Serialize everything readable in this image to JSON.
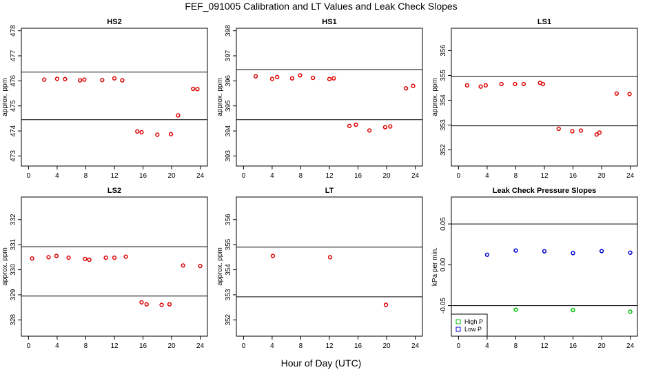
{
  "figure": {
    "title": "FEF_091005  Calibration and LT Values and Leak Check Slopes",
    "xlabel": "Hour of Day (UTC)"
  },
  "chart_data": [
    {
      "id": "hs2",
      "type": "scatter",
      "title": "HS2",
      "xlabel": "",
      "ylabel": "approx. ppm",
      "xlim": [
        -1,
        25
      ],
      "ylim": [
        472.6,
        478.1
      ],
      "xticks": [
        "0",
        "4",
        "8",
        "12",
        "16",
        "20",
        "24"
      ],
      "yticks": [
        "473",
        "474",
        "475",
        "476",
        "477",
        "478"
      ],
      "hlines": [
        476.35,
        474.45
      ],
      "series": [
        {
          "color": "#dd0000",
          "marker": "circle",
          "x": [
            2.2,
            4.0,
            5.1,
            7.2,
            7.8,
            10.3,
            12.0,
            13.1,
            15.2,
            15.8,
            18.0,
            19.9,
            20.9,
            23.0,
            23.6
          ],
          "y": [
            476.05,
            476.08,
            476.07,
            476.02,
            476.05,
            476.03,
            476.1,
            476.02,
            473.98,
            473.95,
            473.85,
            473.87,
            474.62,
            475.68,
            475.67
          ]
        }
      ]
    },
    {
      "id": "hs1",
      "type": "scatter",
      "title": "HS1",
      "xlabel": "",
      "ylabel": "approx. ppm",
      "xlim": [
        -1,
        25
      ],
      "ylim": [
        392.6,
        398.1
      ],
      "xticks": [
        "0",
        "4",
        "8",
        "12",
        "16",
        "20",
        "24"
      ],
      "yticks": [
        "393",
        "394",
        "395",
        "396",
        "397",
        "398"
      ],
      "hlines": [
        396.45,
        394.45
      ],
      "series": [
        {
          "color": "#dd0000",
          "marker": "circle",
          "x": [
            1.7,
            4.0,
            4.7,
            6.8,
            7.9,
            9.7,
            12.0,
            12.6,
            14.8,
            15.7,
            17.6,
            19.8,
            20.5,
            22.7,
            23.7
          ],
          "y": [
            396.18,
            396.08,
            396.15,
            396.1,
            396.22,
            396.12,
            396.07,
            396.1,
            394.2,
            394.25,
            394.02,
            394.15,
            394.18,
            395.7,
            395.8
          ]
        }
      ]
    },
    {
      "id": "ls1",
      "type": "scatter",
      "title": "LS1",
      "xlabel": "",
      "ylabel": "approx. ppm",
      "xlim": [
        -1,
        25
      ],
      "ylim": [
        351.35,
        356.9
      ],
      "xticks": [
        "0",
        "4",
        "8",
        "12",
        "16",
        "20",
        "24"
      ],
      "yticks": [
        "352",
        "353",
        "354",
        "355",
        "356"
      ],
      "hlines": [
        354.95,
        352.97
      ],
      "series": [
        {
          "color": "#dd0000",
          "marker": "circle",
          "x": [
            1.2,
            3.1,
            3.8,
            6.0,
            7.9,
            9.1,
            11.4,
            11.8,
            14.0,
            15.9,
            17.1,
            19.3,
            19.7,
            22.1,
            23.9
          ],
          "y": [
            354.6,
            354.55,
            354.6,
            354.65,
            354.65,
            354.65,
            354.7,
            354.65,
            352.85,
            352.75,
            352.78,
            352.62,
            352.7,
            354.27,
            354.25
          ]
        }
      ]
    },
    {
      "id": "ls2",
      "type": "scatter",
      "title": "LS2",
      "xlabel": "",
      "ylabel": "approx. ppm",
      "xlim": [
        -1,
        25
      ],
      "ylim": [
        327.35,
        332.9
      ],
      "xticks": [
        "0",
        "4",
        "8",
        "12",
        "16",
        "20",
        "24"
      ],
      "yticks": [
        "328",
        "329",
        "330",
        "331",
        "332"
      ],
      "hlines": [
        330.92,
        328.95
      ],
      "series": [
        {
          "color": "#dd0000",
          "marker": "circle",
          "x": [
            0.5,
            2.8,
            3.9,
            5.6,
            7.9,
            8.5,
            10.8,
            12.0,
            13.6,
            15.8,
            16.5,
            18.6,
            19.7,
            21.6,
            24.0
          ],
          "y": [
            330.45,
            330.5,
            330.55,
            330.48,
            330.43,
            330.4,
            330.48,
            330.48,
            330.52,
            328.7,
            328.62,
            328.6,
            328.62,
            330.17,
            330.15
          ]
        }
      ]
    },
    {
      "id": "lt",
      "type": "scatter",
      "title": "LT",
      "xlabel": "",
      "ylabel": "approx. ppm",
      "xlim": [
        -1,
        25
      ],
      "ylim": [
        351.35,
        356.9
      ],
      "xticks": [
        "0",
        "4",
        "8",
        "12",
        "16",
        "20",
        "24"
      ],
      "yticks": [
        "352",
        "353",
        "354",
        "355",
        "356"
      ],
      "hlines": [
        354.9,
        352.92
      ],
      "series": [
        {
          "color": "#dd0000",
          "marker": "circle",
          "x": [
            4.1,
            12.1,
            19.9
          ],
          "y": [
            354.55,
            354.5,
            352.6
          ]
        }
      ]
    },
    {
      "id": "leak",
      "type": "scatter",
      "title": "Leak Check Pressure Slopes",
      "xlabel": "",
      "ylabel": "kPa per min.",
      "xlim": [
        -1,
        25
      ],
      "ylim": [
        -0.0875,
        0.083
      ],
      "xticks": [
        "0",
        "4",
        "8",
        "12",
        "16",
        "20",
        "24"
      ],
      "yticks": [
        "-0.05",
        "0.00",
        "0.05"
      ],
      "hlines": [
        0.05,
        -0.05
      ],
      "legend": "bottom-left",
      "series": [
        {
          "name": "High P",
          "color": "#00bb00",
          "marker": "circle",
          "x": [
            8.0,
            16.0,
            24.0
          ],
          "y": [
            -0.055,
            -0.0555,
            -0.0575
          ]
        },
        {
          "name": "Low P",
          "color": "#0000cc",
          "marker": "circle",
          "x": [
            4.0,
            8.0,
            12.0,
            16.0,
            20.0,
            24.0
          ],
          "y": [
            0.0123,
            0.0175,
            0.0165,
            0.0143,
            0.0168,
            0.0148
          ]
        }
      ]
    }
  ]
}
